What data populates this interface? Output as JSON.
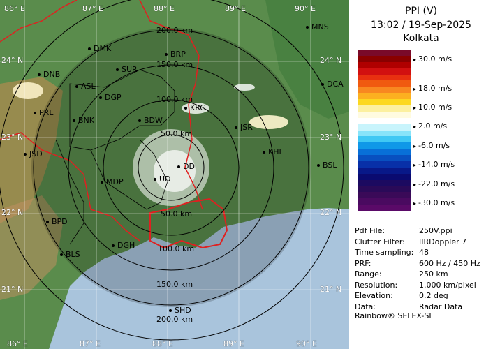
{
  "title": {
    "line1": "PPI (V)",
    "line2": "13:02 / 19-Sep-2025",
    "line3": "Kolkata"
  },
  "colorbar": {
    "colors": [
      "#7a0a2a",
      "#8a0000",
      "#b00000",
      "#d21010",
      "#e83010",
      "#f05a10",
      "#f88820",
      "#fcb020",
      "#fcd820",
      "#fcf0a0",
      "#fffbe0",
      "#ffffff",
      "#c8f4fc",
      "#88e4fa",
      "#40c8f4",
      "#1098e8",
      "#0870d8",
      "#0850c0",
      "#0830a8",
      "#081888",
      "#0a0a70",
      "#1c0a60",
      "#2a0a58",
      "#3a0a58",
      "#4a0a60",
      "#5a0a68"
    ],
    "labels": [
      {
        "text": "30.0 m/s",
        "top": 86
      },
      {
        "text": "18.0 m/s",
        "top": 128
      },
      {
        "text": "10.0 m/s",
        "top": 155
      },
      {
        "text": "2.0 m/s",
        "top": 182
      },
      {
        "text": "-6.0 m/s",
        "top": 210
      },
      {
        "text": "-14.0 m/s",
        "top": 237
      },
      {
        "text": "-22.0 m/s",
        "top": 265
      },
      {
        "text": "-30.0 m/s",
        "top": 292
      }
    ]
  },
  "info": [
    {
      "k": "Pdf File:",
      "v": "250V.ppi"
    },
    {
      "k": "Clutter Filter:",
      "v": "IIRDoppler 7"
    },
    {
      "k": "Time sampling:",
      "v": "48"
    },
    {
      "k": "PRF:",
      "v": "600 Hz / 450 Hz"
    },
    {
      "k": "Range:",
      "v": "250 km"
    },
    {
      "k": "Resolution:",
      "v": "1.000 km/pixel"
    },
    {
      "k": "Elevation:",
      "v": "0.2 deg"
    },
    {
      "k": "Data:",
      "v": "Radar Data"
    }
  ],
  "footer": "Rainbow® SELEX-SI",
  "map": {
    "rings": [
      "50.0 km",
      "100.0 km",
      "150.0 km",
      "200.0 km"
    ],
    "ring_labels_top": [
      "200.0 km",
      "150.0 km",
      "100.0 km",
      "50.0 km"
    ],
    "ring_labels_bottom": [
      "50.0 km",
      "100.0 km",
      "150.0 km",
      "200.0 km"
    ],
    "lon_labels": [
      "86° E",
      "87° E",
      "88° E",
      "89° E",
      "90° E"
    ],
    "lat_labels": [
      "24° N",
      "23° N",
      "22° N",
      "21° N"
    ],
    "cities": [
      "DMK",
      "BRP",
      "MNS",
      "SUR",
      "DNB",
      "ASL",
      "DGP",
      "DCA",
      "KRC",
      "PRL",
      "BNK",
      "BDW",
      "JSR",
      "JSD",
      "KHL",
      "BSL",
      "DD",
      "MDP",
      "UD",
      "BPD",
      "DGH",
      "BLS",
      "SHD"
    ]
  }
}
